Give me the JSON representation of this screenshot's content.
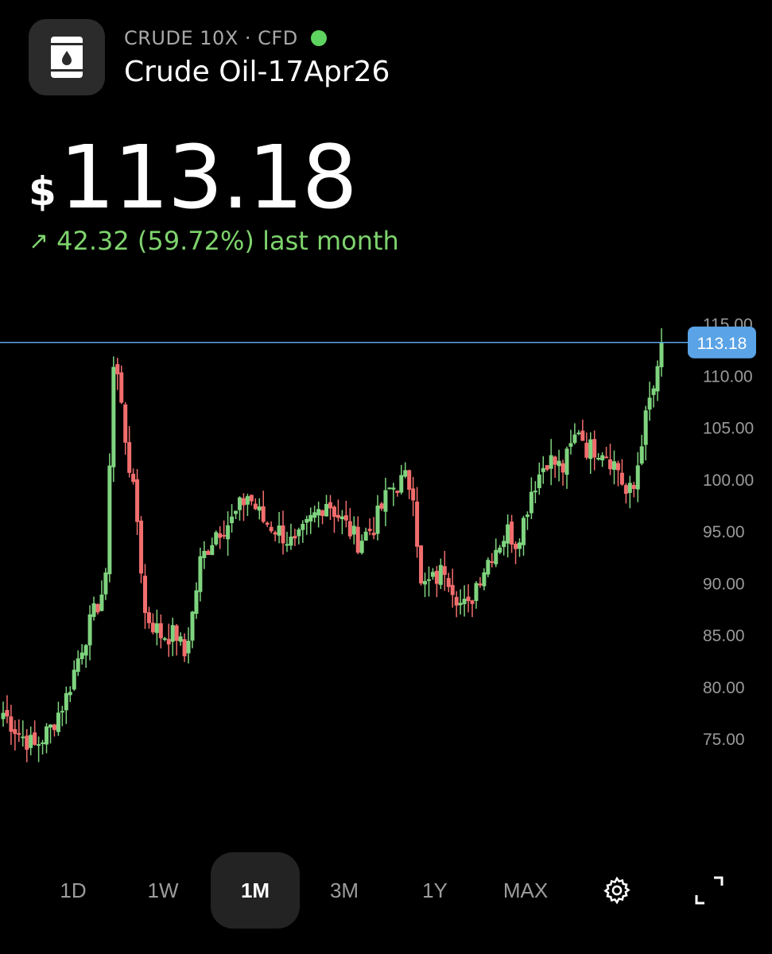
{
  "header": {
    "ticker": "CRUDE 10X · CFD",
    "name": "Crude Oil-17Apr26",
    "icon": "oil-barrel-icon",
    "status_color": "#5fd35f"
  },
  "price": {
    "currency": "$",
    "value": "113.18",
    "change_arrow": "↗",
    "change_text": "42.32 (59.72%) last month",
    "change_color": "#7ed36d"
  },
  "chart_data": {
    "type": "candlestick",
    "ylim": [
      72,
      116
    ],
    "yticks": [
      "115.00",
      "110.00",
      "105.00",
      "100.00",
      "95.00",
      "90.00",
      "85.00",
      "80.00",
      "75.00"
    ],
    "current_price_label": "113.18",
    "current_price": 113.18,
    "up_color": "#7fd47f",
    "down_color": "#f26d6d",
    "price_line_color": "#5aa3e6",
    "anchors": [
      [
        0,
        77.5
      ],
      [
        4,
        75.5
      ],
      [
        8,
        74.2
      ],
      [
        12,
        76
      ],
      [
        16,
        79
      ],
      [
        20,
        84
      ],
      [
        24,
        88
      ],
      [
        26,
        90
      ],
      [
        27,
        102
      ],
      [
        28,
        111
      ],
      [
        29,
        110
      ],
      [
        31,
        104
      ],
      [
        34,
        96
      ],
      [
        36,
        87
      ],
      [
        40,
        85
      ],
      [
        44,
        85
      ],
      [
        46,
        83
      ],
      [
        48,
        87
      ],
      [
        50,
        92
      ],
      [
        54,
        95
      ],
      [
        58,
        96
      ],
      [
        62,
        98.5
      ],
      [
        66,
        96
      ],
      [
        70,
        95
      ],
      [
        74,
        93.5
      ],
      [
        78,
        96
      ],
      [
        82,
        98
      ],
      [
        86,
        96
      ],
      [
        90,
        94
      ],
      [
        94,
        95.5
      ],
      [
        98,
        99
      ],
      [
        102,
        100
      ],
      [
        104,
        99
      ],
      [
        106,
        89.5
      ],
      [
        110,
        90.5
      ],
      [
        112,
        91.5
      ],
      [
        116,
        88
      ],
      [
        118,
        87.5
      ],
      [
        120,
        90
      ],
      [
        124,
        93
      ],
      [
        128,
        95
      ],
      [
        130,
        94
      ],
      [
        132,
        96
      ],
      [
        134,
        99
      ],
      [
        138,
        102
      ],
      [
        142,
        101
      ],
      [
        146,
        105
      ],
      [
        148,
        103
      ],
      [
        152,
        103
      ],
      [
        156,
        101
      ],
      [
        158,
        98.5
      ],
      [
        160,
        99
      ],
      [
        162,
        104
      ],
      [
        164,
        107.5
      ],
      [
        166,
        110
      ],
      [
        167,
        113.18
      ]
    ]
  },
  "timeframes": {
    "items": [
      "1D",
      "1W",
      "1M",
      "3M",
      "1Y",
      "MAX"
    ],
    "active": "1M"
  },
  "controls": {
    "settings_icon": "gear-icon",
    "fullscreen_icon": "expand-icon"
  }
}
